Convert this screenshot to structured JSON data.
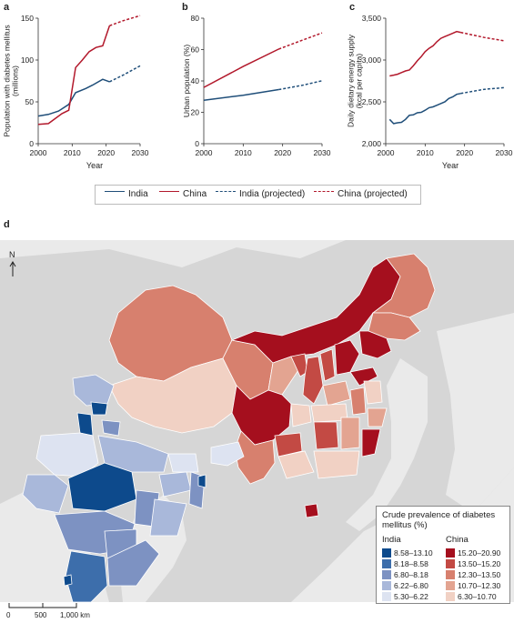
{
  "panels": [
    {
      "letter": "a"
    },
    {
      "letter": "b"
    },
    {
      "letter": "c"
    },
    {
      "letter": "d"
    }
  ],
  "chart_data": [
    {
      "type": "line",
      "panel": "a",
      "xlabel": "Year",
      "ylabel": "Population with diabetes mellitus (millions)",
      "xlim": [
        2000,
        2030
      ],
      "ylim": [
        0,
        150
      ],
      "xticks": [
        "2000",
        "2010",
        "2020",
        "2030"
      ],
      "yticks": [
        "0",
        "50",
        "100",
        "150"
      ],
      "series": [
        {
          "name": "India",
          "x": [
            2000,
            2003,
            2006,
            2009,
            2011,
            2014,
            2016,
            2019,
            2021
          ],
          "y": [
            33,
            35,
            39,
            47,
            61,
            66,
            70,
            77,
            74
          ]
        },
        {
          "name": "China",
          "x": [
            2000,
            2003,
            2007,
            2009,
            2011,
            2013,
            2015,
            2017,
            2019,
            2021
          ],
          "y": [
            23,
            24,
            36,
            40,
            91,
            100,
            110,
            115,
            117,
            141
          ]
        },
        {
          "name": "India (projected)",
          "x": [
            2021,
            2025,
            2030
          ],
          "y": [
            74,
            82,
            93
          ]
        },
        {
          "name": "China (projected)",
          "x": [
            2021,
            2025,
            2030
          ],
          "y": [
            141,
            147,
            153
          ]
        }
      ]
    },
    {
      "type": "line",
      "panel": "b",
      "xlabel": "",
      "ylabel": "Urban population (%)",
      "xlim": [
        2000,
        2030
      ],
      "ylim": [
        0,
        80
      ],
      "xticks": [
        "2000",
        "2010",
        "2020",
        "2030"
      ],
      "yticks": [
        "0",
        "20",
        "40",
        "60",
        "80"
      ],
      "series": [
        {
          "name": "India",
          "x": [
            2000,
            2010,
            2019
          ],
          "y": [
            27.7,
            30.9,
            34.5
          ]
        },
        {
          "name": "China",
          "x": [
            2000,
            2010,
            2019
          ],
          "y": [
            35.9,
            49.2,
            60.3
          ]
        },
        {
          "name": "India (projected)",
          "x": [
            2019,
            2025,
            2030
          ],
          "y": [
            34.5,
            37.2,
            40.1
          ]
        },
        {
          "name": "China (projected)",
          "x": [
            2019,
            2025,
            2030
          ],
          "y": [
            60.3,
            66.0,
            70.6
          ]
        }
      ]
    },
    {
      "type": "line",
      "panel": "c",
      "xlabel": "Year",
      "ylabel": "Daily dietary energy supply (kcal per capita)",
      "xlim": [
        2000,
        2030
      ],
      "ylim": [
        2000,
        3500
      ],
      "xticks": [
        "2000",
        "2010",
        "2020",
        "2030"
      ],
      "yticks": [
        "2,000",
        "2,500",
        "3,000",
        "3,500"
      ],
      "series": [
        {
          "name": "India",
          "x": [
            2001,
            2002,
            2003,
            2004,
            2005,
            2006,
            2007,
            2008,
            2009,
            2010,
            2011,
            2012,
            2013,
            2014,
            2015,
            2016,
            2017,
            2018,
            2019
          ],
          "y": [
            2290,
            2240,
            2250,
            2255,
            2290,
            2340,
            2345,
            2370,
            2375,
            2400,
            2430,
            2440,
            2460,
            2480,
            2500,
            2540,
            2560,
            2590,
            2600
          ]
        },
        {
          "name": "China",
          "x": [
            2001,
            2002,
            2003,
            2004,
            2005,
            2006,
            2007,
            2008,
            2009,
            2010,
            2011,
            2012,
            2013,
            2014,
            2015,
            2016,
            2017,
            2018,
            2019
          ],
          "y": [
            2810,
            2820,
            2830,
            2850,
            2870,
            2880,
            2930,
            2990,
            3040,
            3100,
            3140,
            3170,
            3220,
            3260,
            3280,
            3300,
            3320,
            3340,
            3330
          ]
        },
        {
          "name": "India (projected)",
          "x": [
            2019,
            2025,
            2030
          ],
          "y": [
            2600,
            2650,
            2670
          ]
        },
        {
          "name": "China (projected)",
          "x": [
            2019,
            2025,
            2030
          ],
          "y": [
            3330,
            3270,
            3230
          ]
        }
      ]
    }
  ],
  "legend": [
    {
      "label": "India",
      "color": "#1f4e79",
      "dashed": false
    },
    {
      "label": "China",
      "color": "#b2182b",
      "dashed": false
    },
    {
      "label": "India (projected)",
      "color": "#1f4e79",
      "dashed": true
    },
    {
      "label": "China (projected)",
      "color": "#b2182b",
      "dashed": true
    }
  ],
  "map": {
    "north_label": "N",
    "scale": {
      "labels": [
        "0",
        "500",
        "1,000 km"
      ]
    },
    "prevalence_legend": {
      "title": "Crude prevalence of diabetes mellitus (%)",
      "india": {
        "heading": "India",
        "bins": [
          {
            "range": "8.58–13.10",
            "color": "#0d4a8c"
          },
          {
            "range": "8.18–8.58",
            "color": "#3d6eab"
          },
          {
            "range": "6.80–8.18",
            "color": "#7d92c2"
          },
          {
            "range": "6.22–6.80",
            "color": "#a9b8da"
          },
          {
            "range": "5.30–6.22",
            "color": "#dde3f1"
          }
        ]
      },
      "china": {
        "heading": "China",
        "bins": [
          {
            "range": "15.20–20.90",
            "color": "#a50f1e"
          },
          {
            "range": "13.50–15.20",
            "color": "#c34a44"
          },
          {
            "range": "12.30–13.50",
            "color": "#d7806e"
          },
          {
            "range": "10.70–12.30",
            "color": "#e3a491"
          },
          {
            "range": "6.30–10.70",
            "color": "#f1d1c4"
          }
        ]
      }
    }
  },
  "colors": {
    "india": "#1f4e79",
    "china": "#b2182b",
    "axis": "#333333",
    "map_background": "#eaeaea",
    "land_other": "#d6d6d6",
    "border": "#ffffff"
  }
}
